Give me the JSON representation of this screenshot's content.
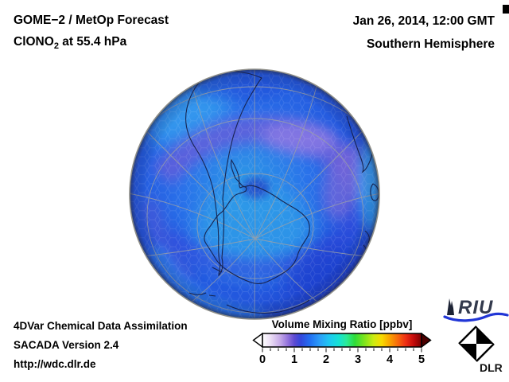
{
  "header": {
    "product": "GOME−2 / MetOp Forecast",
    "species_prefix": "ClONO",
    "species_sub": "2",
    "species_suffix": " at 55.4 hPa",
    "datetime": "Jan 26, 2014, 12:00 GMT",
    "hemisphere": "Southern Hemisphere"
  },
  "credits": {
    "line1": "4DVar Chemical Data Assimilation",
    "line2": "SACADA Version 2.4",
    "line3": "http://wdc.dlr.de"
  },
  "colorbar": {
    "title": "Volume Mixing Ratio [ppbv]",
    "unit": "ppbv",
    "min": 0,
    "max": 5,
    "ticks": [
      "0",
      "1",
      "2",
      "3",
      "4",
      "5"
    ],
    "stops": [
      [
        "0",
        "#ffffff"
      ],
      [
        "0.05",
        "#ecdff5"
      ],
      [
        "0.11",
        "#c6abe8"
      ],
      [
        "0.16",
        "#9272dc"
      ],
      [
        "0.20",
        "#5e4bd2"
      ],
      [
        "0.24",
        "#3347dc"
      ],
      [
        "0.30",
        "#2270f2"
      ],
      [
        "0.36",
        "#2b9ef8"
      ],
      [
        "0.42",
        "#1ec8f2"
      ],
      [
        "0.48",
        "#16e2d4"
      ],
      [
        "0.53",
        "#2bea96"
      ],
      [
        "0.58",
        "#2edc3a"
      ],
      [
        "0.64",
        "#7ce41c"
      ],
      [
        "0.70",
        "#cdeb12"
      ],
      [
        "0.75",
        "#f8da00"
      ],
      [
        "0.80",
        "#f9a300"
      ],
      [
        "0.85",
        "#f86a0c"
      ],
      [
        "0.90",
        "#ef3014"
      ],
      [
        "0.95",
        "#c50b0b"
      ],
      [
        "1",
        "#7a0000"
      ]
    ],
    "arrow_left_color": "#ffffff",
    "arrow_right_color": "#4d0000"
  },
  "globe_colors": {
    "base_blue": "#2a72ea",
    "center_cyan": "#2f9de8",
    "band_purple": "#7b6ad8",
    "bright_purple": "#8d7ce4",
    "deep_blue": "#1d3dcc",
    "bright_blue": "#2f8ef2",
    "coastline": "#16204a",
    "graticule": "#9aa0a8"
  },
  "logos": {
    "riu": "RIU",
    "dlr": "DLR",
    "riu_swoosh_color": "#2136d6"
  }
}
